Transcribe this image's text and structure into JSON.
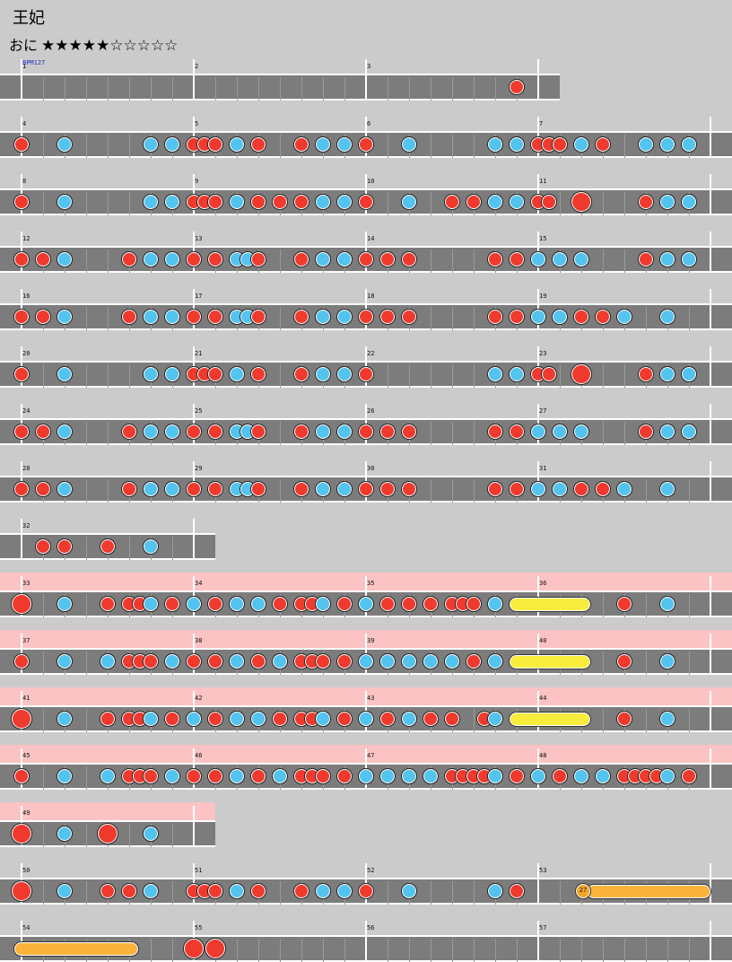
{
  "title": "王妃",
  "difficulty": "おに",
  "stars": "★★★★★☆☆☆☆☆",
  "level": {
    "filled": 5,
    "total": 10
  },
  "bpm_label": "BPM127",
  "balloon_count": "27",
  "note_legend": {
    "d": "don (red)",
    "k": "ka (blue)",
    "D": "big don",
    "Y": "yellow drumroll",
    "O": "orange drumroll",
    "B": "balloon"
  },
  "colors": {
    "don": "#f03a2e",
    "ka": "#52c4ef",
    "lane": "#7c7c7c",
    "gogo": "#fbc3c3",
    "roll": "#f8ec3c",
    "balloon_roll": "#fbb33c"
  },
  "rows": [
    {
      "measures": [
        1,
        2,
        3
      ],
      "gogo": false,
      "notes": [
        [
          23,
          "d"
        ]
      ]
    },
    {
      "measures": [
        4,
        5,
        6,
        7
      ],
      "gogo": false,
      "notes": [
        [
          0,
          "d"
        ],
        [
          2,
          "k"
        ],
        [
          6,
          "k"
        ],
        [
          7,
          "k"
        ],
        [
          8,
          "d"
        ],
        [
          8.5,
          "d"
        ],
        [
          9,
          "d"
        ],
        [
          10,
          "k"
        ],
        [
          11,
          "d"
        ],
        [
          13,
          "d"
        ],
        [
          14,
          "k"
        ],
        [
          15,
          "k"
        ],
        [
          16,
          "d"
        ],
        [
          18,
          "k"
        ],
        [
          22,
          "k"
        ],
        [
          23,
          "k"
        ],
        [
          24,
          "d"
        ],
        [
          24.5,
          "d"
        ],
        [
          25,
          "d"
        ],
        [
          26,
          "k"
        ],
        [
          27,
          "d"
        ],
        [
          29,
          "k"
        ],
        [
          30,
          "k"
        ],
        [
          31,
          "k"
        ]
      ]
    },
    {
      "measures": [
        8,
        9,
        10,
        11
      ],
      "gogo": false,
      "notes": [
        [
          0,
          "d"
        ],
        [
          2,
          "k"
        ],
        [
          6,
          "k"
        ],
        [
          7,
          "k"
        ],
        [
          8,
          "d"
        ],
        [
          8.5,
          "d"
        ],
        [
          9,
          "d"
        ],
        [
          10,
          "k"
        ],
        [
          11,
          "d"
        ],
        [
          12,
          "d"
        ],
        [
          13,
          "d"
        ],
        [
          14,
          "k"
        ],
        [
          15,
          "k"
        ],
        [
          16,
          "d"
        ],
        [
          18,
          "k"
        ],
        [
          20,
          "d"
        ],
        [
          21,
          "d"
        ],
        [
          22,
          "k"
        ],
        [
          23,
          "k"
        ],
        [
          24,
          "d"
        ],
        [
          24.5,
          "d"
        ],
        [
          26,
          "D"
        ],
        [
          29,
          "d"
        ],
        [
          30,
          "k"
        ],
        [
          31,
          "k"
        ]
      ]
    },
    {
      "measures": [
        12,
        13,
        14,
        15
      ],
      "gogo": false,
      "notes": [
        [
          0,
          "d"
        ],
        [
          1,
          "d"
        ],
        [
          2,
          "k"
        ],
        [
          5,
          "d"
        ],
        [
          6,
          "k"
        ],
        [
          7,
          "k"
        ],
        [
          8,
          "d"
        ],
        [
          9,
          "d"
        ],
        [
          10,
          "k"
        ],
        [
          10.5,
          "k"
        ],
        [
          11,
          "d"
        ],
        [
          13,
          "d"
        ],
        [
          14,
          "k"
        ],
        [
          15,
          "k"
        ],
        [
          16,
          "d"
        ],
        [
          17,
          "d"
        ],
        [
          18,
          "d"
        ],
        [
          22,
          "d"
        ],
        [
          23,
          "d"
        ],
        [
          24,
          "k"
        ],
        [
          25,
          "k"
        ],
        [
          26,
          "k"
        ],
        [
          29,
          "d"
        ],
        [
          30,
          "k"
        ],
        [
          31,
          "k"
        ]
      ]
    },
    {
      "measures": [
        16,
        17,
        18,
        19
      ],
      "gogo": false,
      "notes": [
        [
          0,
          "d"
        ],
        [
          1,
          "d"
        ],
        [
          2,
          "k"
        ],
        [
          5,
          "d"
        ],
        [
          6,
          "k"
        ],
        [
          7,
          "k"
        ],
        [
          8,
          "d"
        ],
        [
          9,
          "d"
        ],
        [
          10,
          "k"
        ],
        [
          10.5,
          "k"
        ],
        [
          11,
          "d"
        ],
        [
          13,
          "d"
        ],
        [
          14,
          "k"
        ],
        [
          15,
          "k"
        ],
        [
          16,
          "d"
        ],
        [
          17,
          "d"
        ],
        [
          18,
          "d"
        ],
        [
          22,
          "d"
        ],
        [
          23,
          "d"
        ],
        [
          24,
          "k"
        ],
        [
          25,
          "k"
        ],
        [
          26,
          "d"
        ],
        [
          27,
          "d"
        ],
        [
          28,
          "k"
        ],
        [
          30,
          "k"
        ]
      ]
    },
    {
      "measures": [
        20,
        21,
        22,
        23
      ],
      "gogo": false,
      "notes": [
        [
          0,
          "d"
        ],
        [
          2,
          "k"
        ],
        [
          6,
          "k"
        ],
        [
          7,
          "k"
        ],
        [
          8,
          "d"
        ],
        [
          8.5,
          "d"
        ],
        [
          9,
          "d"
        ],
        [
          10,
          "k"
        ],
        [
          11,
          "d"
        ],
        [
          13,
          "d"
        ],
        [
          14,
          "k"
        ],
        [
          15,
          "k"
        ],
        [
          16,
          "d"
        ],
        [
          22,
          "k"
        ],
        [
          23,
          "k"
        ],
        [
          24,
          "d"
        ],
        [
          24.5,
          "d"
        ],
        [
          26,
          "D"
        ],
        [
          29,
          "d"
        ],
        [
          30,
          "k"
        ],
        [
          31,
          "k"
        ]
      ]
    },
    {
      "measures": [
        24,
        25,
        26,
        27
      ],
      "gogo": false,
      "notes": [
        [
          0,
          "d"
        ],
        [
          1,
          "d"
        ],
        [
          2,
          "k"
        ],
        [
          5,
          "d"
        ],
        [
          6,
          "k"
        ],
        [
          7,
          "k"
        ],
        [
          8,
          "d"
        ],
        [
          9,
          "d"
        ],
        [
          10,
          "k"
        ],
        [
          10.5,
          "k"
        ],
        [
          11,
          "d"
        ],
        [
          13,
          "d"
        ],
        [
          14,
          "k"
        ],
        [
          15,
          "k"
        ],
        [
          16,
          "d"
        ],
        [
          17,
          "d"
        ],
        [
          18,
          "d"
        ],
        [
          22,
          "d"
        ],
        [
          23,
          "d"
        ],
        [
          24,
          "k"
        ],
        [
          25,
          "k"
        ],
        [
          26,
          "k"
        ],
        [
          29,
          "d"
        ],
        [
          30,
          "k"
        ],
        [
          31,
          "k"
        ]
      ]
    },
    {
      "measures": [
        28,
        29,
        30,
        31
      ],
      "gogo": false,
      "notes": [
        [
          0,
          "d"
        ],
        [
          1,
          "d"
        ],
        [
          2,
          "k"
        ],
        [
          5,
          "d"
        ],
        [
          6,
          "k"
        ],
        [
          7,
          "k"
        ],
        [
          8,
          "d"
        ],
        [
          9,
          "d"
        ],
        [
          10,
          "k"
        ],
        [
          10.5,
          "k"
        ],
        [
          11,
          "d"
        ],
        [
          13,
          "d"
        ],
        [
          14,
          "k"
        ],
        [
          15,
          "k"
        ],
        [
          16,
          "d"
        ],
        [
          17,
          "d"
        ],
        [
          18,
          "d"
        ],
        [
          22,
          "d"
        ],
        [
          23,
          "d"
        ],
        [
          24,
          "k"
        ],
        [
          25,
          "k"
        ],
        [
          26,
          "d"
        ],
        [
          27,
          "d"
        ],
        [
          28,
          "k"
        ],
        [
          30,
          "k"
        ]
      ]
    },
    {
      "measures": [
        32
      ],
      "gogo": false,
      "notes": [
        [
          1,
          "d"
        ],
        [
          2,
          "d"
        ],
        [
          4,
          "d"
        ],
        [
          6,
          "k"
        ]
      ]
    },
    {
      "measures": [
        33,
        34,
        35,
        36
      ],
      "gogo": true,
      "notes": [
        [
          0,
          "D"
        ],
        [
          2,
          "k"
        ],
        [
          4,
          "d"
        ],
        [
          5,
          "d"
        ],
        [
          5.5,
          "d"
        ],
        [
          6,
          "k"
        ],
        [
          7,
          "d"
        ],
        [
          8,
          "k"
        ],
        [
          9,
          "d"
        ],
        [
          10,
          "k"
        ],
        [
          11,
          "k"
        ],
        [
          12,
          "d"
        ],
        [
          13,
          "d"
        ],
        [
          13.5,
          "d"
        ],
        [
          14,
          "k"
        ],
        [
          15,
          "d"
        ],
        [
          16,
          "k"
        ],
        [
          17,
          "d"
        ],
        [
          18,
          "d"
        ],
        [
          19,
          "d"
        ],
        [
          20,
          "d"
        ],
        [
          20.5,
          "d"
        ],
        [
          21,
          "d"
        ],
        [
          22,
          "k"
        ],
        [
          23,
          "Y",
          26.1
        ],
        [
          28,
          "d"
        ],
        [
          30,
          "k"
        ]
      ]
    },
    {
      "measures": [
        37,
        38,
        39,
        40
      ],
      "gogo": true,
      "notes": [
        [
          0,
          "d"
        ],
        [
          2,
          "k"
        ],
        [
          4,
          "k"
        ],
        [
          5,
          "d"
        ],
        [
          5.5,
          "d"
        ],
        [
          6,
          "d"
        ],
        [
          7,
          "k"
        ],
        [
          8,
          "d"
        ],
        [
          9,
          "d"
        ],
        [
          10,
          "k"
        ],
        [
          11,
          "d"
        ],
        [
          12,
          "k"
        ],
        [
          13,
          "d"
        ],
        [
          13.5,
          "d"
        ],
        [
          14,
          "d"
        ],
        [
          15,
          "d"
        ],
        [
          16,
          "k"
        ],
        [
          17,
          "k"
        ],
        [
          18,
          "k"
        ],
        [
          19,
          "k"
        ],
        [
          20,
          "k"
        ],
        [
          21,
          "d"
        ],
        [
          22,
          "k"
        ],
        [
          23,
          "Y",
          26.1
        ],
        [
          28,
          "d"
        ],
        [
          30,
          "k"
        ]
      ]
    },
    {
      "measures": [
        41,
        42,
        43,
        44
      ],
      "gogo": true,
      "notes": [
        [
          0,
          "D"
        ],
        [
          2,
          "k"
        ],
        [
          4,
          "d"
        ],
        [
          5,
          "d"
        ],
        [
          5.5,
          "d"
        ],
        [
          6,
          "k"
        ],
        [
          7,
          "d"
        ],
        [
          8,
          "k"
        ],
        [
          9,
          "d"
        ],
        [
          10,
          "k"
        ],
        [
          11,
          "k"
        ],
        [
          12,
          "d"
        ],
        [
          13,
          "d"
        ],
        [
          13.5,
          "d"
        ],
        [
          14,
          "k"
        ],
        [
          15,
          "d"
        ],
        [
          16,
          "k"
        ],
        [
          17,
          "d"
        ],
        [
          18,
          "k"
        ],
        [
          19,
          "d"
        ],
        [
          20,
          "d"
        ],
        [
          21.5,
          "d"
        ],
        [
          22,
          "k"
        ],
        [
          23,
          "Y",
          26.1
        ],
        [
          28,
          "d"
        ],
        [
          30,
          "k"
        ]
      ]
    },
    {
      "measures": [
        45,
        46,
        47,
        48
      ],
      "gogo": true,
      "notes": [
        [
          0,
          "d"
        ],
        [
          2,
          "k"
        ],
        [
          4,
          "k"
        ],
        [
          5,
          "d"
        ],
        [
          5.5,
          "d"
        ],
        [
          6,
          "d"
        ],
        [
          7,
          "k"
        ],
        [
          8,
          "d"
        ],
        [
          9,
          "d"
        ],
        [
          10,
          "k"
        ],
        [
          11,
          "d"
        ],
        [
          12,
          "k"
        ],
        [
          13,
          "d"
        ],
        [
          13.5,
          "d"
        ],
        [
          14,
          "d"
        ],
        [
          15,
          "d"
        ],
        [
          16,
          "k"
        ],
        [
          17,
          "k"
        ],
        [
          18,
          "k"
        ],
        [
          19,
          "k"
        ],
        [
          20,
          "d"
        ],
        [
          20.5,
          "d"
        ],
        [
          21,
          "d"
        ],
        [
          21.5,
          "d"
        ],
        [
          22,
          "k"
        ],
        [
          23,
          "d"
        ],
        [
          24,
          "k"
        ],
        [
          25,
          "d"
        ],
        [
          26,
          "k"
        ],
        [
          27,
          "k"
        ],
        [
          28,
          "d"
        ],
        [
          28.5,
          "d"
        ],
        [
          29,
          "d"
        ],
        [
          29.5,
          "d"
        ],
        [
          30,
          "k"
        ],
        [
          31,
          "d"
        ]
      ]
    },
    {
      "measures": [
        49
      ],
      "gogo": true,
      "notes": [
        [
          0,
          "D"
        ],
        [
          2,
          "k"
        ],
        [
          4,
          "D"
        ],
        [
          6,
          "k"
        ]
      ]
    },
    {
      "measures": [
        50,
        51,
        52,
        53
      ],
      "gogo": false,
      "notes": [
        [
          0,
          "D"
        ],
        [
          2,
          "k"
        ],
        [
          4,
          "d"
        ],
        [
          5,
          "d"
        ],
        [
          6,
          "k"
        ],
        [
          8,
          "d"
        ],
        [
          8.5,
          "d"
        ],
        [
          9,
          "d"
        ],
        [
          10,
          "k"
        ],
        [
          11,
          "d"
        ],
        [
          13,
          "d"
        ],
        [
          14,
          "k"
        ],
        [
          15,
          "k"
        ],
        [
          16,
          "d"
        ],
        [
          18,
          "k"
        ],
        [
          22,
          "k"
        ],
        [
          23,
          "d"
        ],
        [
          26,
          "B",
          32
        ]
      ]
    },
    {
      "measures": [
        54,
        55,
        56,
        57
      ],
      "gogo": false,
      "notes": [
        [
          0,
          "O",
          5.1
        ],
        [
          8,
          "D"
        ],
        [
          9,
          "D"
        ]
      ]
    }
  ]
}
